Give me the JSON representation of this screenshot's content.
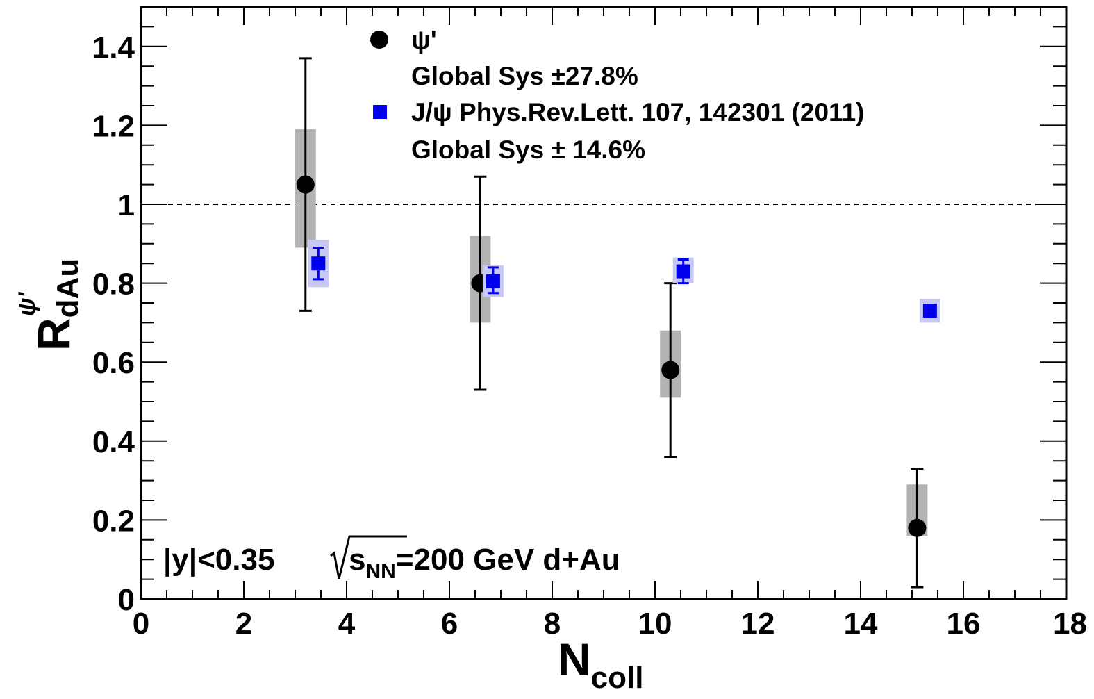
{
  "chart_data": {
    "type": "scatter",
    "xlabel": "N",
    "xlabel_sub": "coll",
    "ylabel": "R",
    "ylabel_sub": "dAu",
    "ylabel_sup": "ψ'",
    "xlim": [
      0,
      18
    ],
    "ylim": [
      0,
      1.5
    ],
    "xticks": [
      0,
      2,
      4,
      6,
      8,
      10,
      12,
      14,
      16,
      18
    ],
    "xtick_labels": [
      "0",
      "2",
      "4",
      "6",
      "8",
      "10",
      "12",
      "14",
      "16",
      "18"
    ],
    "yticks": [
      0,
      0.2,
      0.4,
      0.6,
      0.8,
      1,
      1.2,
      1.4
    ],
    "ytick_labels": [
      "0",
      "0.2",
      "0.4",
      "0.6",
      "0.8",
      "1",
      "1.2",
      "1.4"
    ],
    "reference_line": 1,
    "grid": false,
    "legend_placement": "top-center",
    "series": [
      {
        "name": "ψ'",
        "marker": "circle",
        "color": "#000000",
        "sys_box_color": "#b3b3b3",
        "x": [
          3.2,
          6.6,
          10.3,
          15.1
        ],
        "y": [
          1.05,
          0.8,
          0.58,
          0.18
        ],
        "stat_low": [
          0.73,
          0.53,
          0.36,
          0.03
        ],
        "stat_high": [
          1.37,
          1.07,
          0.8,
          0.33
        ],
        "sys_low": [
          0.89,
          0.7,
          0.51,
          0.16
        ],
        "sys_high": [
          1.19,
          0.92,
          0.68,
          0.29
        ]
      },
      {
        "name": "J/ψ Phys.Rev.Lett. 107, 142301 (2011)",
        "marker": "square",
        "color": "#0000ee",
        "sys_box_color": "#c8c8f4",
        "x": [
          3.45,
          6.85,
          10.55,
          15.35
        ],
        "y": [
          0.85,
          0.805,
          0.83,
          0.73
        ],
        "stat_low": [
          0.81,
          0.775,
          0.8,
          0.715
        ],
        "stat_high": [
          0.89,
          0.84,
          0.86,
          0.745
        ],
        "sys_low": [
          0.79,
          0.765,
          0.8,
          0.7
        ],
        "sys_high": [
          0.91,
          0.845,
          0.865,
          0.76
        ]
      }
    ],
    "legend": [
      {
        "label": "ψ'",
        "note": "Global Sys ±27.8%"
      },
      {
        "label": "J/ψ Phys.Rev.Lett. 107, 142301 (2011)",
        "note": "Global Sys ± 14.6%"
      }
    ],
    "annotation": {
      "rapidity": "|y|<0.35",
      "energy_pre": "s",
      "energy_sub": "NN",
      "energy_post": "=200 GeV d+Au"
    }
  }
}
